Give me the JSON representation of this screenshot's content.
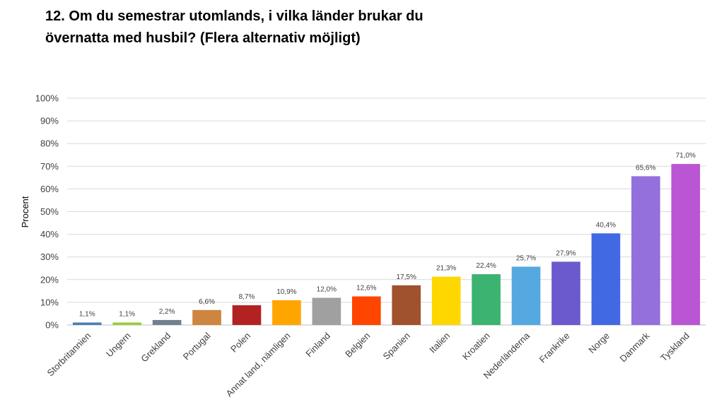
{
  "title": {
    "line1": "12. Om du semestrar utomlands, i vilka länder brukar du",
    "line2": "övernatta med husbil? (Flera alternativ möjligt)"
  },
  "chart_data": {
    "type": "bar",
    "ylabel": "Procent",
    "xlabel": "",
    "ylim": [
      0,
      100
    ],
    "yticks": [
      "0%",
      "10%",
      "20%",
      "30%",
      "40%",
      "50%",
      "60%",
      "70%",
      "80%",
      "90%",
      "100%"
    ],
    "grid": true,
    "legend": "none",
    "categories": [
      "Storbritannien",
      "Ungern",
      "Grekland",
      "Portugal",
      "Polen",
      "Annat land, nämligen",
      "Finland",
      "Belgien",
      "Spanien",
      "Italien",
      "Kroatien",
      "Nederländerna",
      "Frankrike",
      "Norge",
      "Danmark",
      "Tyskland"
    ],
    "values": [
      1.1,
      1.1,
      2.2,
      6.6,
      8.7,
      10.9,
      12.0,
      12.6,
      17.5,
      21.3,
      22.4,
      25.7,
      27.9,
      40.4,
      65.6,
      71.0
    ],
    "data_labels": [
      "1,1%",
      "1,1%",
      "2,2%",
      "6,6%",
      "8,7%",
      "10,9%",
      "12,0%",
      "12,6%",
      "17,5%",
      "21,3%",
      "22,4%",
      "25,7%",
      "27,9%",
      "40,4%",
      "65,6%",
      "71,0%"
    ],
    "colors": [
      "#4A7EBB",
      "#9ACD32",
      "#708090",
      "#CD853F",
      "#B22222",
      "#FFA500",
      "#A0A0A0",
      "#FF4500",
      "#A0522D",
      "#FFD700",
      "#3CB371",
      "#56A8E0",
      "#6A5ACD",
      "#4169E1",
      "#9370DB",
      "#BA55D3"
    ]
  }
}
